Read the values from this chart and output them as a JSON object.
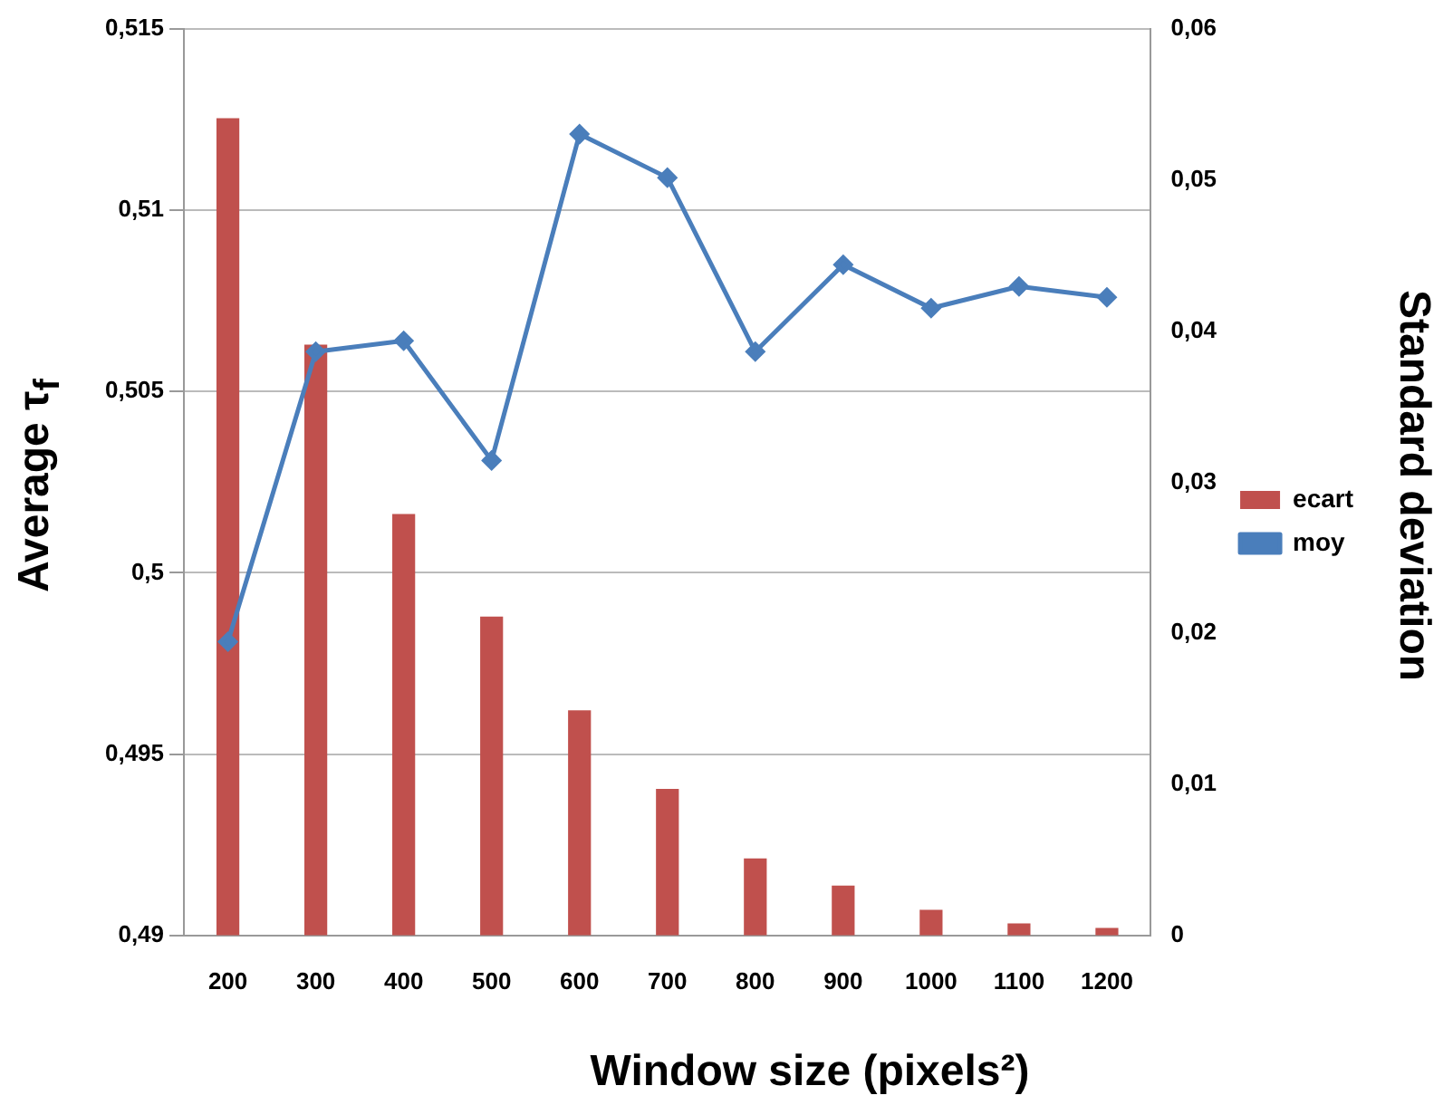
{
  "chart_data": {
    "type": "bar",
    "xlabel": "Window size (pixels²)",
    "ylabel": "Average τ$_{f}$",
    "y2label": "Standard deviation",
    "categories": [
      "200",
      "300",
      "400",
      "500",
      "600",
      "700",
      "800",
      "900",
      "1000",
      "1100",
      "1200"
    ],
    "series": [
      {
        "name": "ecart",
        "axis": "y2",
        "color": "#c0504d",
        "values": [
          0.0541,
          0.0391,
          0.0279,
          0.0211,
          0.0149,
          0.0097,
          0.0051,
          0.0033,
          0.0017,
          0.0008,
          0.0005
        ]
      },
      {
        "name": "moy",
        "type": "line",
        "axis": "y",
        "color": "#4a7ebb",
        "values": [
          0.4981,
          0.5061,
          0.5064,
          0.5031,
          0.5121,
          0.5109,
          0.5061,
          0.5085,
          0.5073,
          0.5079,
          0.5076
        ]
      }
    ],
    "ylim": [
      0.49,
      0.515
    ],
    "yticks": [
      {
        "value": 0.49,
        "label": "0,49"
      },
      {
        "value": 0.495,
        "label": "0,495"
      },
      {
        "value": 0.5,
        "label": "0,5"
      },
      {
        "value": 0.505,
        "label": "0,505"
      },
      {
        "value": 0.51,
        "label": "0,51"
      },
      {
        "value": 0.515,
        "label": "0,515"
      }
    ],
    "y2lim": [
      0,
      0.06
    ],
    "y2ticks": [
      {
        "value": 0,
        "label": "0"
      },
      {
        "value": 0.01,
        "label": "0,01"
      },
      {
        "value": 0.02,
        "label": "0,02"
      },
      {
        "value": 0.03,
        "label": "0,03"
      },
      {
        "value": 0.04,
        "label": "0,04"
      },
      {
        "value": 0.05,
        "label": "0,05"
      },
      {
        "value": 0.06,
        "label": "0,06"
      }
    ],
    "grid": "y",
    "legend": "right",
    "marker": "diamond",
    "line_style": "solid"
  }
}
